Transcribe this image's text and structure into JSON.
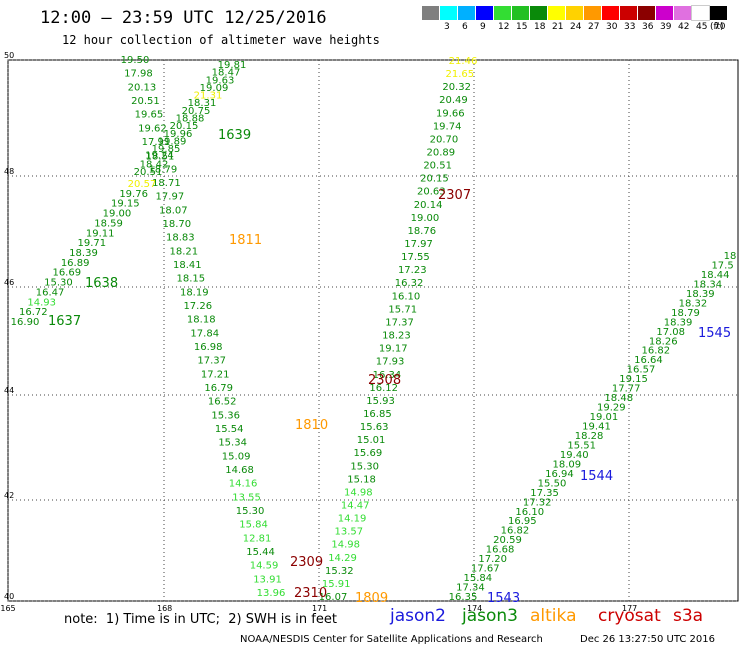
{
  "header": {
    "title": "12:00 – 23:59 UTC 12/25/2016",
    "subtitle": "12 hour collection of altimeter wave heights"
  },
  "colorbar": {
    "unit": "(ft)",
    "bins": [
      {
        "label": "",
        "color": "#7f7f7f"
      },
      {
        "label": "3",
        "color": "#00ffff"
      },
      {
        "label": "6",
        "color": "#00b0ff"
      },
      {
        "label": "9",
        "color": "#0000ff"
      },
      {
        "label": "12",
        "color": "#33dd33"
      },
      {
        "label": "15",
        "color": "#22c022"
      },
      {
        "label": "18",
        "color": "#0a8a0a"
      },
      {
        "label": "21",
        "color": "#ffff00"
      },
      {
        "label": "24",
        "color": "#ffd200"
      },
      {
        "label": "27",
        "color": "#ff9900"
      },
      {
        "label": "30",
        "color": "#ff0000"
      },
      {
        "label": "33",
        "color": "#cc0000"
      },
      {
        "label": "36",
        "color": "#8b0000"
      },
      {
        "label": "39",
        "color": "#cc00cc"
      },
      {
        "label": "42",
        "color": "#e070e0"
      },
      {
        "label": "45",
        "color": "#ffffff"
      },
      {
        "label": "70",
        "color": "#000000"
      }
    ]
  },
  "axes": {
    "lon_ticks": [
      "165",
      "168",
      "171",
      "174",
      "177"
    ],
    "lat_ticks": [
      "50",
      "48",
      "46",
      "44",
      "42",
      "40"
    ]
  },
  "passes": [
    {
      "satellite": "jason3",
      "label": "1637"
    },
    {
      "satellite": "jason3",
      "label": "1638"
    },
    {
      "satellite": "jason3",
      "label": "1639"
    },
    {
      "satellite": "altika",
      "label": "1811"
    },
    {
      "satellite": "altika",
      "label": "1810"
    },
    {
      "satellite": "altika",
      "label": "1809"
    },
    {
      "satellite": "cryosat",
      "label": "2307"
    },
    {
      "satellite": "cryosat",
      "label": "2308"
    },
    {
      "satellite": "cryosat",
      "label": "2309"
    },
    {
      "satellite": "cryosat",
      "label": "2310"
    },
    {
      "satellite": "jason2",
      "label": "1543"
    },
    {
      "satellite": "jason2",
      "label": "1544"
    },
    {
      "satellite": "jason2",
      "label": "1545"
    }
  ],
  "tracks": [
    {
      "name": "track-a-upper",
      "values": [
        "19.81",
        "18.47",
        "19.63",
        "19.09",
        "21.31",
        "18.31",
        "20.75",
        "18.88",
        "20.15",
        "19.96",
        "19.89",
        "19.85",
        "18.51",
        "18.42",
        "20.51"
      ],
      "colors": [
        "g",
        "g",
        "g",
        "g",
        "y",
        "g",
        "g",
        "g",
        "g",
        "g",
        "g",
        "g",
        "g",
        "g",
        "g"
      ]
    },
    {
      "name": "track-a-lower",
      "values": [
        "20.57",
        "19.76",
        "19.15",
        "19.00",
        "18.59",
        "19.11",
        "19.71",
        "18.39",
        "16.89",
        "16.69",
        "15.30",
        "16.47",
        "14.93",
        "16.72",
        "16.90"
      ],
      "colors": [
        "y",
        "g",
        "g",
        "g",
        "g",
        "g",
        "g",
        "g",
        "g",
        "g",
        "g",
        "g",
        "l",
        "g",
        "g"
      ]
    },
    {
      "name": "track-b",
      "values": [
        "19.50",
        "17.98",
        "20.13",
        "20.51",
        "19.65",
        "19.62",
        "17.91",
        "19.24",
        "18.79",
        "18.71",
        "17.97",
        "18.07",
        "18.70",
        "18.83",
        "18.21",
        "18.41",
        "18.15",
        "18.19",
        "17.26",
        "18.18",
        "17.84",
        "16.98",
        "17.37",
        "17.21",
        "16.79",
        "16.52",
        "15.36",
        "15.54",
        "15.34",
        "15.09",
        "14.68",
        "14.16",
        "13.55",
        "15.30",
        "15.84",
        "12.81",
        "15.44",
        "14.59",
        "13.91",
        "13.96"
      ],
      "colors": [
        "g",
        "g",
        "g",
        "g",
        "g",
        "g",
        "g",
        "g",
        "g",
        "g",
        "g",
        "g",
        "g",
        "g",
        "g",
        "g",
        "g",
        "g",
        "g",
        "g",
        "g",
        "g",
        "g",
        "g",
        "g",
        "g",
        "g",
        "g",
        "g",
        "g",
        "g",
        "l",
        "l",
        "g",
        "l",
        "l",
        "g",
        "l",
        "l",
        "l"
      ]
    },
    {
      "name": "track-c",
      "values": [
        "21.46",
        "21.65",
        "20.32",
        "20.49",
        "19.66",
        "19.74",
        "20.70",
        "20.89",
        "20.51",
        "20.15",
        "20.63",
        "20.14",
        "19.00",
        "18.76",
        "17.97",
        "17.55",
        "17.23",
        "16.32",
        "16.10",
        "15.71",
        "17.37",
        "18.23",
        "19.17",
        "17.93",
        "16.34",
        "16.12",
        "15.93",
        "16.85",
        "15.63",
        "15.01",
        "15.69",
        "15.30",
        "15.18",
        "14.98",
        "14.47",
        "14.19",
        "13.57",
        "14.98",
        "14.29",
        "15.32",
        "15.91",
        "16.07"
      ],
      "colors": [
        "y",
        "y",
        "g",
        "g",
        "g",
        "g",
        "g",
        "g",
        "g",
        "g",
        "g",
        "g",
        "g",
        "g",
        "g",
        "g",
        "g",
        "g",
        "g",
        "g",
        "g",
        "g",
        "g",
        "g",
        "g",
        "g",
        "g",
        "g",
        "g",
        "g",
        "g",
        "g",
        "g",
        "l",
        "l",
        "l",
        "l",
        "l",
        "l",
        "g",
        "l",
        "g"
      ]
    },
    {
      "name": "track-d",
      "values": [
        "18",
        "17.5",
        "18.44",
        "18.34",
        "18.39",
        "18.32",
        "18.79",
        "18.39",
        "17.08",
        "18.26",
        "16.82",
        "16.64",
        "16.57",
        "19.15",
        "17.77",
        "18.48",
        "19.29",
        "19.01",
        "19.41",
        "18.28",
        "15.51",
        "19.40",
        "18.09",
        "16.94",
        "15.50",
        "17.35",
        "17.32",
        "16.10",
        "16.95",
        "16.82",
        "20.59",
        "16.68",
        "17.20",
        "17.67",
        "15.84",
        "17.34",
        "16.35"
      ],
      "colors": [
        "g",
        "g",
        "g",
        "g",
        "g",
        "g",
        "g",
        "g",
        "g",
        "g",
        "g",
        "g",
        "g",
        "g",
        "g",
        "g",
        "g",
        "g",
        "g",
        "g",
        "g",
        "g",
        "g",
        "g",
        "g",
        "g",
        "g",
        "g",
        "g",
        "g",
        "g",
        "g",
        "g",
        "g",
        "g",
        "g",
        "g"
      ]
    }
  ],
  "footer": {
    "note": "note:  1) Time is in UTC;  2) SWH is in feet",
    "legend": [
      {
        "label": "jason2",
        "color": "#1a1adc"
      },
      {
        "label": "jason3",
        "color": "#0a8a0a"
      },
      {
        "label": "altika",
        "color": "#ff9900"
      },
      {
        "label": "cryosat",
        "color": "#cc0000"
      },
      {
        "label": "s3a",
        "color": "#cc0000"
      }
    ],
    "credit": "NOAA/NESDIS Center for Satellite Applications and Research",
    "timestamp": "Dec 26 13:27:50 UTC 2016"
  }
}
